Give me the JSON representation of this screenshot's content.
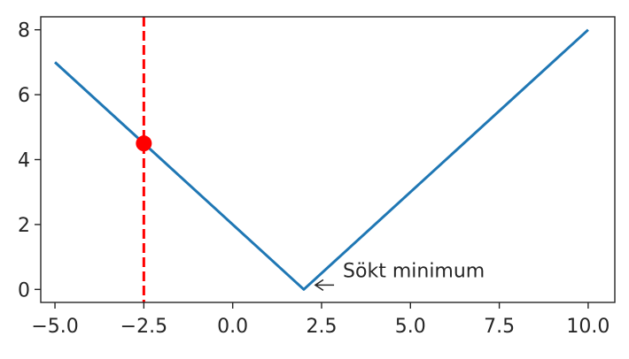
{
  "chart_data": {
    "type": "line",
    "title": "",
    "xlabel": "",
    "ylabel": "",
    "xlim": [
      -5.4,
      10.75
    ],
    "ylim": [
      -0.4,
      8.4
    ],
    "x_ticks": [
      -5.0,
      -2.5,
      0.0,
      2.5,
      5.0,
      7.5,
      10.0
    ],
    "x_tick_labels": [
      "−5.0",
      "−2.5",
      "0.0",
      "2.5",
      "5.0",
      "7.5",
      "10.0"
    ],
    "y_ticks": [
      0,
      2,
      4,
      6,
      8
    ],
    "y_tick_labels": [
      "0",
      "2",
      "4",
      "6",
      "8"
    ],
    "grid": false,
    "series": [
      {
        "color": "#1f77b4",
        "x": [
          -5.0,
          2.0,
          10.0
        ],
        "y": [
          7.0,
          0.0,
          8.0
        ]
      }
    ],
    "vertical_line": {
      "x": -2.5,
      "color": "#ff0000",
      "style": "dashed"
    },
    "marker_point": {
      "x": -2.5,
      "y": 4.5,
      "color": "#ff0000"
    },
    "annotation": {
      "text": "Sökt minimum",
      "point": {
        "x": 2.0,
        "y": 0.0
      },
      "text_position": {
        "x": 3.1,
        "y": 0.6
      }
    },
    "colors": {
      "axis": "#262626",
      "line": "#1f77b4",
      "marker": "#ff0000"
    }
  }
}
